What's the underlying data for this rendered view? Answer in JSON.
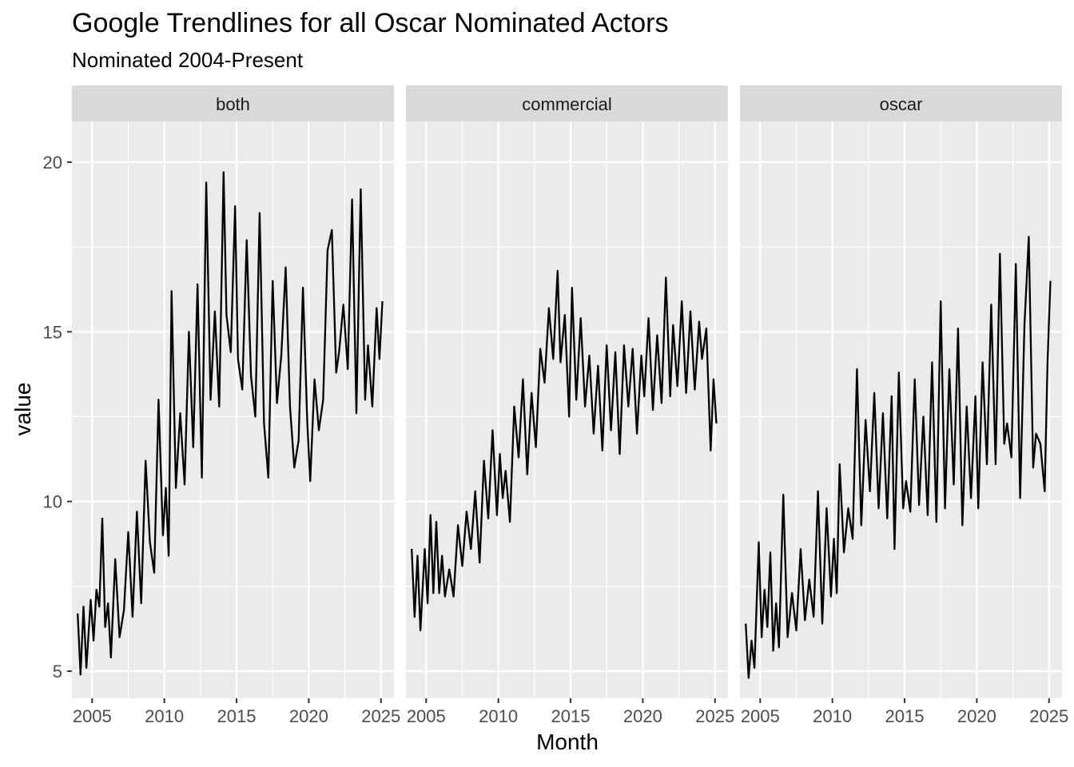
{
  "chart_data": {
    "type": "line",
    "title": "Google Trendlines for all Oscar Nominated Actors",
    "subtitle": "Nominated 2004-Present",
    "xlabel": "Month",
    "ylabel": "value",
    "xlim": [
      2003.6,
      2025.9
    ],
    "ylim": [
      4.2,
      21.2
    ],
    "x_ticks": [
      2005,
      2010,
      2015,
      2020,
      2025
    ],
    "y_ticks": [
      5,
      10,
      15,
      20
    ],
    "panels": [
      {
        "name": "both",
        "x": [
          2004.0,
          2004.2,
          2004.4,
          2004.6,
          2004.9,
          2005.1,
          2005.3,
          2005.5,
          2005.7,
          2005.9,
          2006.1,
          2006.3,
          2006.6,
          2006.9,
          2007.2,
          2007.5,
          2007.8,
          2008.1,
          2008.4,
          2008.7,
          2009.0,
          2009.3,
          2009.6,
          2009.9,
          2010.1,
          2010.3,
          2010.5,
          2010.8,
          2011.1,
          2011.4,
          2011.7,
          2012.0,
          2012.3,
          2012.6,
          2012.9,
          2013.2,
          2013.5,
          2013.8,
          2014.1,
          2014.3,
          2014.6,
          2014.9,
          2015.1,
          2015.4,
          2015.7,
          2016.0,
          2016.3,
          2016.6,
          2016.9,
          2017.2,
          2017.5,
          2017.8,
          2018.1,
          2018.4,
          2018.7,
          2019.0,
          2019.3,
          2019.6,
          2019.9,
          2020.1,
          2020.4,
          2020.7,
          2021.0,
          2021.3,
          2021.6,
          2021.9,
          2022.1,
          2022.4,
          2022.7,
          2023.0,
          2023.3,
          2023.6,
          2023.9,
          2024.1,
          2024.4,
          2024.7,
          2024.9,
          2025.1
        ],
        "values": [
          6.7,
          4.9,
          6.9,
          5.1,
          7.1,
          5.9,
          7.4,
          6.9,
          9.5,
          6.3,
          7.0,
          5.4,
          8.3,
          6.0,
          6.8,
          9.1,
          6.6,
          9.7,
          7.0,
          11.2,
          8.8,
          7.9,
          13.0,
          9.0,
          10.4,
          8.4,
          16.2,
          10.4,
          12.6,
          10.5,
          15.0,
          11.6,
          16.4,
          10.7,
          19.4,
          13.0,
          15.6,
          12.8,
          19.7,
          15.5,
          14.4,
          18.7,
          14.2,
          13.3,
          17.7,
          13.7,
          12.5,
          18.5,
          12.3,
          10.7,
          16.5,
          12.9,
          14.3,
          16.9,
          12.8,
          11.0,
          11.8,
          16.3,
          12.3,
          10.6,
          13.6,
          12.1,
          13.0,
          17.4,
          18.0,
          13.8,
          14.4,
          15.8,
          13.9,
          18.9,
          12.6,
          19.2,
          13.0,
          14.6,
          12.8,
          15.7,
          14.2,
          15.9
        ]
      },
      {
        "name": "commercial",
        "x": [
          2004.0,
          2004.2,
          2004.4,
          2004.6,
          2004.9,
          2005.1,
          2005.3,
          2005.5,
          2005.7,
          2005.9,
          2006.1,
          2006.3,
          2006.6,
          2006.9,
          2007.2,
          2007.5,
          2007.8,
          2008.1,
          2008.4,
          2008.7,
          2009.0,
          2009.3,
          2009.6,
          2009.9,
          2010.1,
          2010.3,
          2010.5,
          2010.8,
          2011.1,
          2011.4,
          2011.7,
          2012.0,
          2012.3,
          2012.6,
          2012.9,
          2013.2,
          2013.5,
          2013.8,
          2014.1,
          2014.3,
          2014.6,
          2014.9,
          2015.1,
          2015.4,
          2015.7,
          2016.0,
          2016.3,
          2016.6,
          2016.9,
          2017.2,
          2017.5,
          2017.8,
          2018.1,
          2018.4,
          2018.7,
          2019.0,
          2019.3,
          2019.6,
          2019.9,
          2020.1,
          2020.4,
          2020.7,
          2021.0,
          2021.3,
          2021.6,
          2021.9,
          2022.1,
          2022.4,
          2022.7,
          2023.0,
          2023.3,
          2023.6,
          2023.9,
          2024.1,
          2024.4,
          2024.7,
          2024.9,
          2025.1
        ],
        "values": [
          8.6,
          6.6,
          8.4,
          6.2,
          8.6,
          7.0,
          9.6,
          7.3,
          9.4,
          7.3,
          8.4,
          7.2,
          8.0,
          7.2,
          9.3,
          8.1,
          9.7,
          8.6,
          10.3,
          8.2,
          11.2,
          9.5,
          12.1,
          9.6,
          11.4,
          10.1,
          10.9,
          9.4,
          12.8,
          11.3,
          13.6,
          10.8,
          13.2,
          11.6,
          14.5,
          13.5,
          15.7,
          14.2,
          16.8,
          14.1,
          15.5,
          12.5,
          16.3,
          13.0,
          15.4,
          12.8,
          14.3,
          12.0,
          14.0,
          11.5,
          14.6,
          12.1,
          14.4,
          11.4,
          14.6,
          12.8,
          14.5,
          12.0,
          14.3,
          13.1,
          15.4,
          12.7,
          14.9,
          12.9,
          16.6,
          13.1,
          15.2,
          13.4,
          15.9,
          13.2,
          15.6,
          13.3,
          15.3,
          14.2,
          15.1,
          11.5,
          13.6,
          12.3
        ]
      },
      {
        "name": "oscar",
        "x": [
          2004.0,
          2004.2,
          2004.4,
          2004.6,
          2004.9,
          2005.1,
          2005.3,
          2005.5,
          2005.7,
          2005.9,
          2006.1,
          2006.3,
          2006.6,
          2006.9,
          2007.2,
          2007.5,
          2007.8,
          2008.1,
          2008.4,
          2008.7,
          2009.0,
          2009.3,
          2009.6,
          2009.9,
          2010.1,
          2010.3,
          2010.5,
          2010.8,
          2011.1,
          2011.4,
          2011.7,
          2012.0,
          2012.3,
          2012.6,
          2012.9,
          2013.2,
          2013.5,
          2013.8,
          2014.1,
          2014.3,
          2014.6,
          2014.9,
          2015.1,
          2015.4,
          2015.7,
          2016.0,
          2016.3,
          2016.6,
          2016.9,
          2017.2,
          2017.5,
          2017.8,
          2018.1,
          2018.4,
          2018.7,
          2019.0,
          2019.3,
          2019.6,
          2019.9,
          2020.1,
          2020.4,
          2020.7,
          2021.0,
          2021.3,
          2021.6,
          2021.9,
          2022.1,
          2022.4,
          2022.7,
          2023.0,
          2023.3,
          2023.6,
          2023.9,
          2024.1,
          2024.4,
          2024.7,
          2024.9,
          2025.1
        ],
        "values": [
          6.4,
          4.8,
          5.9,
          5.1,
          8.8,
          6.0,
          7.4,
          6.3,
          8.5,
          5.6,
          7.0,
          5.7,
          10.2,
          6.0,
          7.3,
          6.2,
          8.6,
          6.5,
          7.7,
          6.6,
          10.3,
          6.4,
          9.8,
          7.2,
          8.9,
          7.3,
          11.1,
          8.5,
          9.8,
          8.9,
          13.9,
          9.3,
          12.4,
          10.3,
          13.2,
          9.8,
          12.6,
          9.5,
          13.1,
          8.6,
          13.8,
          9.8,
          10.6,
          9.7,
          13.6,
          9.9,
          12.5,
          9.6,
          14.1,
          9.4,
          15.9,
          9.8,
          13.9,
          10.5,
          15.1,
          9.3,
          12.8,
          10.1,
          13.1,
          9.8,
          14.1,
          11.1,
          15.8,
          11.1,
          17.3,
          11.7,
          12.3,
          11.3,
          17.0,
          10.1,
          15.2,
          17.8,
          11.0,
          12.0,
          11.7,
          10.3,
          14.1,
          16.5
        ]
      }
    ],
    "colors": {
      "panel_background": "#ebebeb",
      "strip_background": "#d9d9d9",
      "grid": "#ffffff",
      "line": "#000000",
      "tick_text": "#4d4d4d",
      "tick_mark": "#333333"
    }
  }
}
